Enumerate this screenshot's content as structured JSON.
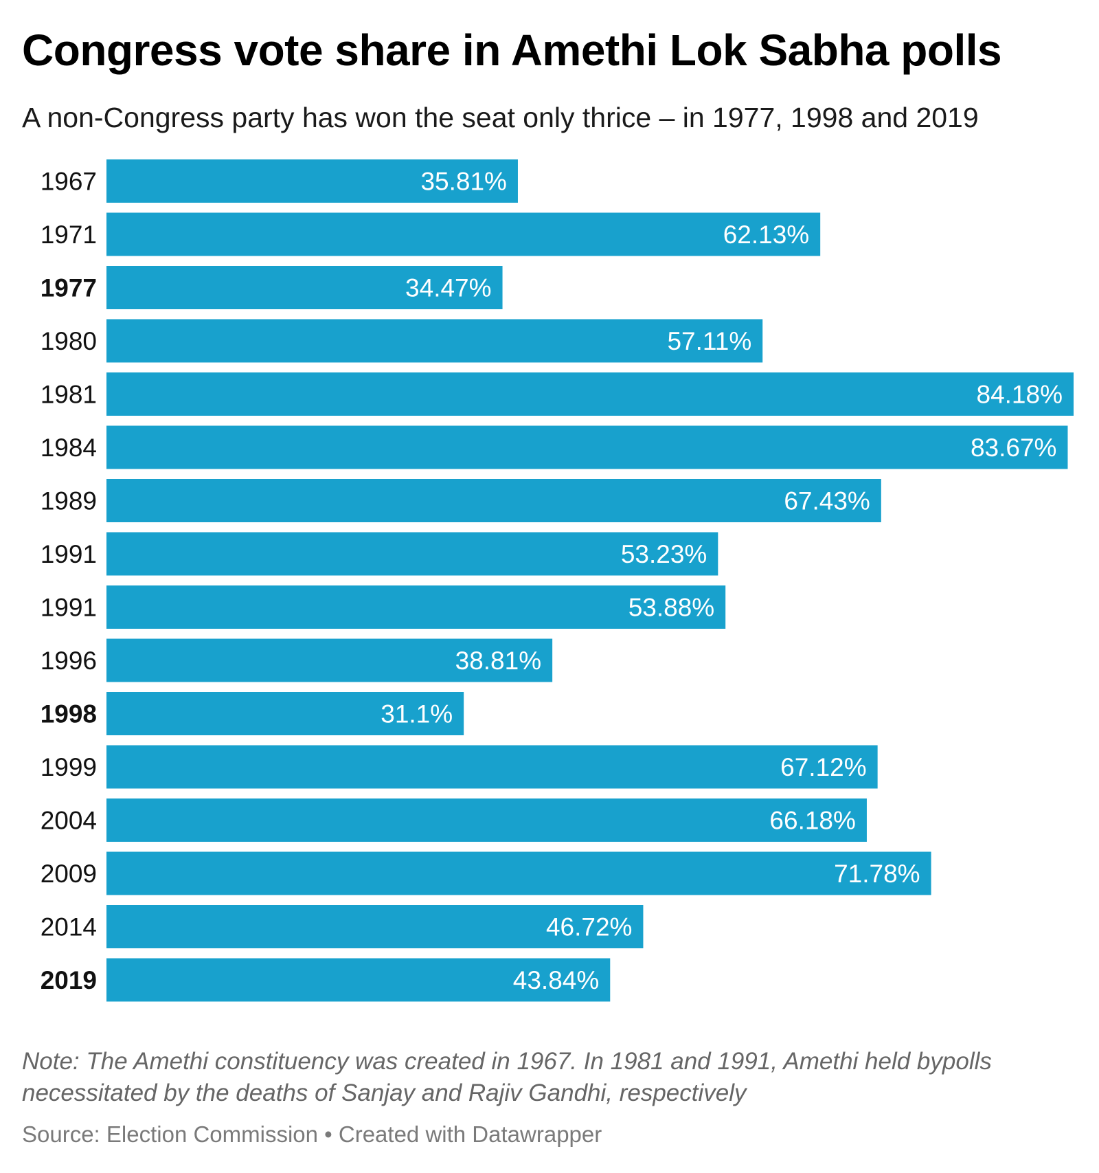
{
  "chart_data": {
    "type": "bar",
    "orientation": "horizontal",
    "title": "Congress vote share in Amethi Lok Sabha polls",
    "subtitle": "A non-Congress party has won the seat only thrice – in 1977, 1998 and 2019",
    "categories": [
      "1967",
      "1971",
      "1977",
      "1980",
      "1981",
      "1984",
      "1989",
      "1991",
      "1991",
      "1996",
      "1998",
      "1999",
      "2004",
      "2009",
      "2014",
      "2019"
    ],
    "values": [
      35.81,
      62.13,
      34.47,
      57.11,
      84.18,
      83.67,
      67.43,
      53.23,
      53.88,
      38.81,
      31.1,
      67.12,
      66.18,
      71.78,
      46.72,
      43.84
    ],
    "labels": [
      "35.81%",
      "62.13%",
      "34.47%",
      "57.11%",
      "84.18%",
      "83.67%",
      "67.43%",
      "53.23%",
      "53.88%",
      "38.81%",
      "31.1%",
      "67.12%",
      "66.18%",
      "71.78%",
      "46.72%",
      "43.84%"
    ],
    "bold_categories": [
      "1977",
      "1998",
      "2019"
    ],
    "xlim": [
      0,
      84.18
    ],
    "grid": false,
    "bar_color": "#18a1cd",
    "label_color": "#ffffff",
    "note": "Note: The Amethi constituency was created in 1967. In 1981 and 1991, Amethi held bypolls necessitated by the deaths of Sanjay and Rajiv Gandhi, respectively",
    "source": "Source: Election Commission • Created with Datawrapper"
  }
}
